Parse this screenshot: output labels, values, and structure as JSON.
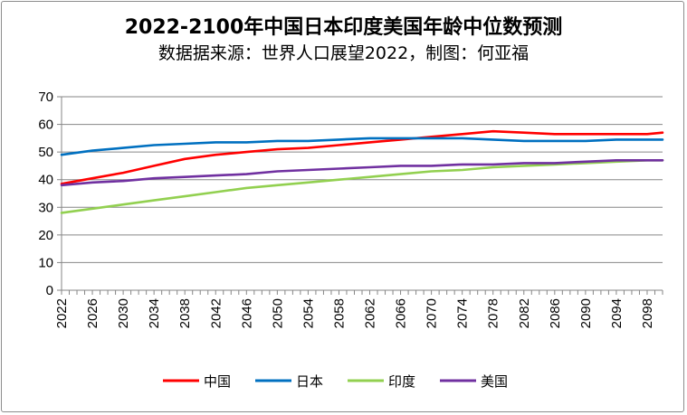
{
  "chart_data": {
    "type": "line",
    "title": "2022-2100年中国日本印度美国年龄中位数预测",
    "subtitle": "数据据来源：世界人口展望2022，制图：何亚福",
    "ylim": [
      0,
      70
    ],
    "yticks": [
      0,
      10,
      20,
      30,
      40,
      50,
      60,
      70
    ],
    "xlim": [
      2022,
      2100
    ],
    "xticks": [
      2022,
      2026,
      2030,
      2034,
      2038,
      2042,
      2046,
      2050,
      2054,
      2058,
      2062,
      2066,
      2070,
      2074,
      2078,
      2082,
      2086,
      2090,
      2094,
      2098
    ],
    "grid": true,
    "legend_position": "bottom",
    "series": [
      {
        "name": "中国",
        "color": "#ff0000",
        "points": [
          [
            2022,
            38.5
          ],
          [
            2026,
            40.5
          ],
          [
            2030,
            42.5
          ],
          [
            2034,
            45.0
          ],
          [
            2038,
            47.5
          ],
          [
            2042,
            49.0
          ],
          [
            2046,
            50.0
          ],
          [
            2050,
            51.0
          ],
          [
            2054,
            51.5
          ],
          [
            2058,
            52.5
          ],
          [
            2062,
            53.5
          ],
          [
            2066,
            54.5
          ],
          [
            2070,
            55.5
          ],
          [
            2074,
            56.5
          ],
          [
            2078,
            57.5
          ],
          [
            2082,
            57.0
          ],
          [
            2086,
            56.5
          ],
          [
            2090,
            56.5
          ],
          [
            2094,
            56.5
          ],
          [
            2098,
            56.5
          ],
          [
            2100,
            57.0
          ]
        ]
      },
      {
        "name": "日本",
        "color": "#0070c0",
        "points": [
          [
            2022,
            49.0
          ],
          [
            2026,
            50.5
          ],
          [
            2030,
            51.5
          ],
          [
            2034,
            52.5
          ],
          [
            2038,
            53.0
          ],
          [
            2042,
            53.5
          ],
          [
            2046,
            53.5
          ],
          [
            2050,
            54.0
          ],
          [
            2054,
            54.0
          ],
          [
            2058,
            54.5
          ],
          [
            2062,
            55.0
          ],
          [
            2066,
            55.0
          ],
          [
            2070,
            55.0
          ],
          [
            2074,
            55.0
          ],
          [
            2078,
            54.5
          ],
          [
            2082,
            54.0
          ],
          [
            2086,
            54.0
          ],
          [
            2090,
            54.0
          ],
          [
            2094,
            54.5
          ],
          [
            2098,
            54.5
          ],
          [
            2100,
            54.5
          ]
        ]
      },
      {
        "name": "印度",
        "color": "#92d050",
        "points": [
          [
            2022,
            28.0
          ],
          [
            2026,
            29.5
          ],
          [
            2030,
            31.0
          ],
          [
            2034,
            32.5
          ],
          [
            2038,
            34.0
          ],
          [
            2042,
            35.5
          ],
          [
            2046,
            37.0
          ],
          [
            2050,
            38.0
          ],
          [
            2054,
            39.0
          ],
          [
            2058,
            40.0
          ],
          [
            2062,
            41.0
          ],
          [
            2066,
            42.0
          ],
          [
            2070,
            43.0
          ],
          [
            2074,
            43.5
          ],
          [
            2078,
            44.5
          ],
          [
            2082,
            45.0
          ],
          [
            2086,
            45.5
          ],
          [
            2090,
            46.0
          ],
          [
            2094,
            46.5
          ],
          [
            2098,
            47.0
          ],
          [
            2100,
            47.0
          ]
        ]
      },
      {
        "name": "美国",
        "color": "#7030a0",
        "points": [
          [
            2022,
            38.0
          ],
          [
            2026,
            39.0
          ],
          [
            2030,
            39.5
          ],
          [
            2034,
            40.5
          ],
          [
            2038,
            41.0
          ],
          [
            2042,
            41.5
          ],
          [
            2046,
            42.0
          ],
          [
            2050,
            43.0
          ],
          [
            2054,
            43.5
          ],
          [
            2058,
            44.0
          ],
          [
            2062,
            44.5
          ],
          [
            2066,
            45.0
          ],
          [
            2070,
            45.0
          ],
          [
            2074,
            45.5
          ],
          [
            2078,
            45.5
          ],
          [
            2082,
            46.0
          ],
          [
            2086,
            46.0
          ],
          [
            2090,
            46.5
          ],
          [
            2094,
            47.0
          ],
          [
            2098,
            47.0
          ],
          [
            2100,
            47.0
          ]
        ]
      }
    ]
  }
}
